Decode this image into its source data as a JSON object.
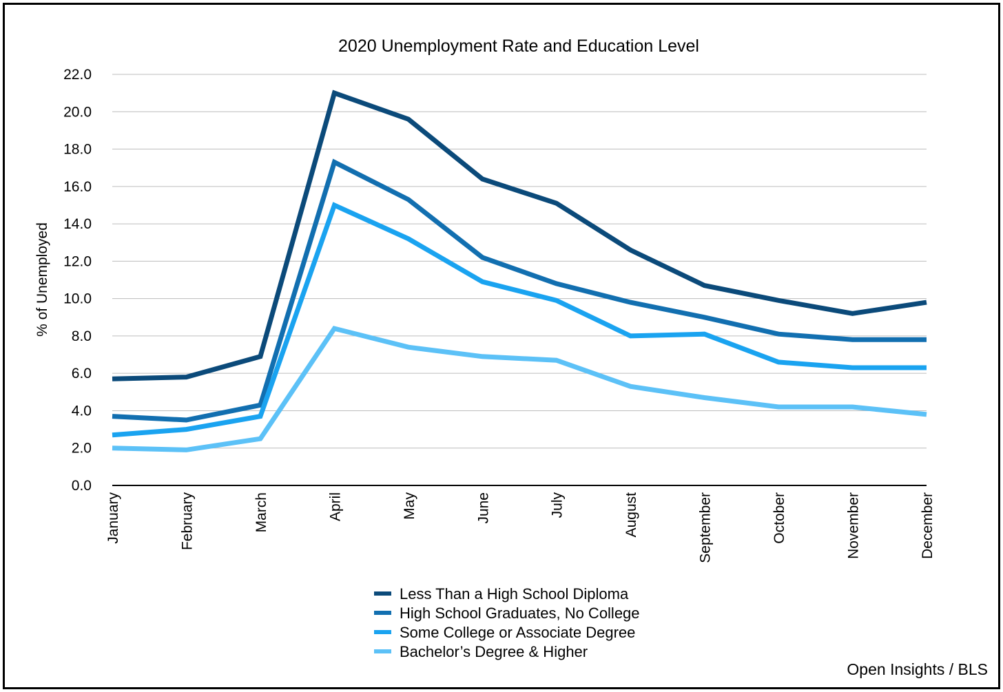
{
  "chart_data": {
    "type": "line",
    "title": "2020 Unemployment Rate and Education Level",
    "xlabel": "",
    "ylabel": "% of Unemployed",
    "ylim": [
      0,
      22
    ],
    "ytick_step": 2,
    "ytick_labels": [
      "0.0",
      "2.0",
      "4.0",
      "6.0",
      "8.0",
      "10.0",
      "12.0",
      "14.0",
      "16.0",
      "18.0",
      "20.0",
      "22.0"
    ],
    "grid": true,
    "legend_position": "bottom-center",
    "categories": [
      "January",
      "February",
      "March",
      "April",
      "May",
      "June",
      "July",
      "August",
      "September",
      "October",
      "November",
      "December"
    ],
    "series": [
      {
        "name": "Less Than a High School Diploma",
        "color": "#0b4a7a",
        "values": [
          5.7,
          5.8,
          6.9,
          21.0,
          19.6,
          16.4,
          15.1,
          12.6,
          10.7,
          9.9,
          9.2,
          9.8
        ]
      },
      {
        "name": "High School Graduates, No College",
        "color": "#126fb0",
        "values": [
          3.7,
          3.5,
          4.3,
          17.3,
          15.3,
          12.2,
          10.8,
          9.8,
          9.0,
          8.1,
          7.8,
          7.8
        ]
      },
      {
        "name": "Some College or Associate Degree",
        "color": "#1aa3f0",
        "values": [
          2.7,
          3.0,
          3.7,
          15.0,
          13.2,
          10.9,
          9.9,
          8.0,
          8.1,
          6.6,
          6.3,
          6.3
        ]
      },
      {
        "name": "Bachelor’s Degree & Higher",
        "color": "#5cc1f7",
        "values": [
          2.0,
          1.9,
          2.5,
          8.4,
          7.4,
          6.9,
          6.7,
          5.3,
          4.7,
          4.2,
          4.2,
          3.8
        ]
      }
    ]
  },
  "source": "Open Insights / BLS"
}
